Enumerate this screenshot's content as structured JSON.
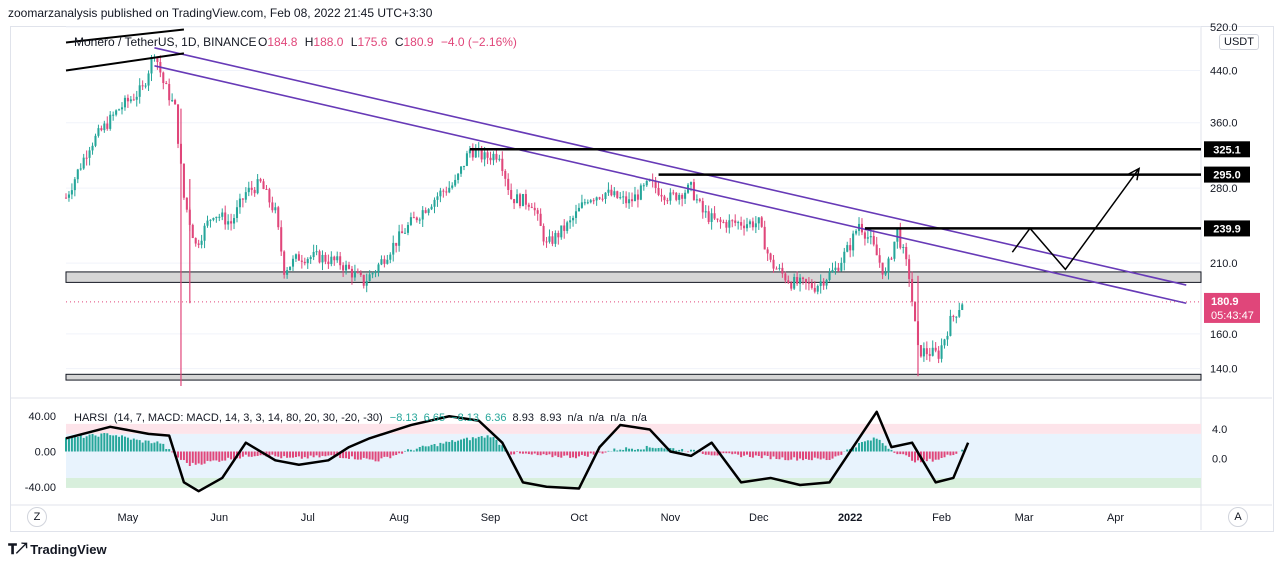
{
  "header": {
    "publisher": "zoomarzanalysis published on TradingView.com, Feb 08, 2022 21:45 UTC+3:30"
  },
  "footer": {
    "brand": "TradingView"
  },
  "currency_badge": "USDT",
  "legend": {
    "symbol": "Monero / TetherUS, 1D, BINANCE",
    "ohlc": [
      {
        "label": "O",
        "value": "184.8"
      },
      {
        "label": "H",
        "value": "188.0"
      },
      {
        "label": "L",
        "value": "175.6"
      },
      {
        "label": "C",
        "value": "180.9"
      },
      {
        "label": "",
        "value": "−4.0 (−2.16%)"
      }
    ]
  },
  "indicator_legend": {
    "name": "HARSI",
    "params": "(14, 7, MACD: MACD, 14, 3, 3, 14, 80, 20, 30, -20, -30)",
    "values": [
      "−8.13",
      "6.65",
      "−8.13",
      "6.36",
      "8.93",
      "8.93",
      "n/a",
      "n/a",
      "n/a",
      "n/a"
    ]
  },
  "axis_buttons": {
    "left": "Z",
    "right": "A"
  },
  "colors": {
    "up": "#26a69a",
    "down": "#e0467a",
    "trendline": "#673ab7",
    "level": "#000000",
    "price_tag": "#e0467a"
  },
  "chart_data": [
    {
      "type": "candlestick",
      "title": "Monero / TetherUS, 1D, BINANCE",
      "y_scale": "log",
      "ylim": [
        128,
        520
      ],
      "y_ticks": [
        "520.0",
        "440.0",
        "360.0",
        "280.0",
        "210.0",
        "160.0",
        "140.0"
      ],
      "y_tick_values": [
        520,
        440,
        360,
        280,
        210,
        160,
        140
      ],
      "x_ticks": [
        "May",
        "Jun",
        "Jul",
        "Aug",
        "Sep",
        "Oct",
        "Nov",
        "Dec",
        "2022",
        "Feb",
        "Mar",
        "Apr"
      ],
      "x_tick_dates": [
        "2021-05-01",
        "2021-06-01",
        "2021-07-01",
        "2021-08-01",
        "2021-09-01",
        "2021-10-01",
        "2021-11-01",
        "2021-12-01",
        "2022-01-01",
        "2022-02-01",
        "2022-03-01",
        "2022-04-01"
      ],
      "xlim": [
        "2021-04-10",
        "2022-04-30"
      ],
      "close_path": [
        [
          "2021-04-10",
          270
        ],
        [
          "2021-04-18",
          330
        ],
        [
          "2021-04-28",
          380
        ],
        [
          "2021-05-06",
          410
        ],
        [
          "2021-05-10",
          475
        ],
        [
          "2021-05-13",
          420
        ],
        [
          "2021-05-17",
          380
        ],
        [
          "2021-05-20",
          270
        ],
        [
          "2021-05-24",
          225
        ],
        [
          "2021-05-30",
          255
        ],
        [
          "2021-06-05",
          245
        ],
        [
          "2021-06-10",
          275
        ],
        [
          "2021-06-15",
          285
        ],
        [
          "2021-06-20",
          255
        ],
        [
          "2021-06-23",
          205
        ],
        [
          "2021-06-28",
          215
        ],
        [
          "2021-07-05",
          215
        ],
        [
          "2021-07-12",
          210
        ],
        [
          "2021-07-20",
          195
        ],
        [
          "2021-07-24",
          205
        ],
        [
          "2021-07-30",
          225
        ],
        [
          "2021-08-05",
          245
        ],
        [
          "2021-08-10",
          260
        ],
        [
          "2021-08-15",
          275
        ],
        [
          "2021-08-20",
          285
        ],
        [
          "2021-08-25",
          325
        ],
        [
          "2021-08-30",
          315
        ],
        [
          "2021-09-04",
          320
        ],
        [
          "2021-09-08",
          270
        ],
        [
          "2021-09-15",
          265
        ],
        [
          "2021-09-20",
          225
        ],
        [
          "2021-09-28",
          245
        ],
        [
          "2021-10-04",
          270
        ],
        [
          "2021-10-10",
          275
        ],
        [
          "2021-10-18",
          265
        ],
        [
          "2021-10-25",
          285
        ],
        [
          "2021-11-01",
          270
        ],
        [
          "2021-11-08",
          280
        ],
        [
          "2021-11-12",
          255
        ],
        [
          "2021-11-17",
          245
        ],
        [
          "2021-11-25",
          245
        ],
        [
          "2021-12-01",
          245
        ],
        [
          "2021-12-05",
          210
        ],
        [
          "2021-12-12",
          195
        ],
        [
          "2021-12-20",
          192
        ],
        [
          "2021-12-27",
          205
        ],
        [
          "2022-01-01",
          225
        ],
        [
          "2022-01-04",
          245
        ],
        [
          "2022-01-08",
          228
        ],
        [
          "2022-01-13",
          200
        ],
        [
          "2022-01-17",
          238
        ],
        [
          "2022-01-21",
          200
        ],
        [
          "2022-01-24",
          150
        ],
        [
          "2022-01-31",
          148
        ],
        [
          "2022-02-04",
          168
        ],
        [
          "2022-02-08",
          181
        ]
      ],
      "wicks": [
        {
          "date": "2021-05-19",
          "high": 380,
          "low": 131
        },
        {
          "date": "2021-05-22",
          "high": 290,
          "low": 180
        },
        {
          "date": "2022-01-24",
          "high": 200,
          "low": 136
        }
      ],
      "last_price": {
        "value": 180.9,
        "label": "180.9",
        "countdown": "05:43:47"
      },
      "levels": [
        {
          "value": 325.1,
          "label": "325.1",
          "from": "2021-08-25"
        },
        {
          "value": 295.0,
          "label": "295.0",
          "from": "2021-10-28"
        },
        {
          "value": 239.9,
          "label": "239.9",
          "from": "2022-01-06"
        }
      ],
      "zones": [
        {
          "low": 195,
          "high": 203
        },
        {
          "low": 134,
          "high": 137
        }
      ],
      "trendlines": [
        {
          "color": "#673ab7",
          "points": [
            [
              "2021-05-10",
              480
            ],
            [
              "2022-04-25",
              193
            ]
          ]
        },
        {
          "color": "#673ab7",
          "points": [
            [
              "2021-05-10",
              448
            ],
            [
              "2022-04-25",
              180
            ]
          ]
        },
        {
          "color": "#000000",
          "points": [
            [
              "2021-04-10",
              490
            ],
            [
              "2021-05-20",
              515
            ]
          ]
        },
        {
          "color": "#000000",
          "points": [
            [
              "2021-04-10",
              440
            ],
            [
              "2021-05-20",
              470
            ]
          ]
        }
      ],
      "projection": [
        [
          "2022-02-25",
          219
        ],
        [
          "2022-03-03",
          240
        ],
        [
          "2022-03-15",
          205
        ],
        [
          "2022-04-09",
          302
        ]
      ]
    },
    {
      "type": "area",
      "title": "HARSI",
      "ylim": [
        -55,
        55
      ],
      "y_ticks_left": [
        "40.00",
        "0.00",
        "-40.00"
      ],
      "y_tick_values_left": [
        40,
        0,
        -40
      ],
      "y_ticks_right": [
        "4.0",
        "0.0"
      ],
      "band_upper": 20,
      "band_lower": -30,
      "histogram": [
        [
          "2021-04-10",
          15
        ],
        [
          "2021-04-25",
          20
        ],
        [
          "2021-05-05",
          12
        ],
        [
          "2021-05-12",
          10
        ],
        [
          "2021-05-17",
          -5
        ],
        [
          "2021-05-22",
          -15
        ],
        [
          "2021-06-01",
          -10
        ],
        [
          "2021-06-15",
          -3
        ],
        [
          "2021-06-25",
          -8
        ],
        [
          "2021-07-10",
          -5
        ],
        [
          "2021-07-25",
          -10
        ],
        [
          "2021-08-05",
          2
        ],
        [
          "2021-08-20",
          12
        ],
        [
          "2021-09-01",
          18
        ],
        [
          "2021-09-08",
          -2
        ],
        [
          "2021-09-20",
          -5
        ],
        [
          "2021-10-01",
          -6
        ],
        [
          "2021-10-15",
          3
        ],
        [
          "2021-10-28",
          5
        ],
        [
          "2021-11-05",
          2
        ],
        [
          "2021-11-15",
          -3
        ],
        [
          "2021-11-28",
          -5
        ],
        [
          "2021-12-10",
          -8
        ],
        [
          "2021-12-25",
          -9
        ],
        [
          "2022-01-05",
          10
        ],
        [
          "2022-01-10",
          15
        ],
        [
          "2022-01-15",
          2
        ],
        [
          "2022-01-24",
          -12
        ],
        [
          "2022-02-01",
          -8
        ],
        [
          "2022-02-08",
          2
        ]
      ],
      "oscillator": [
        [
          "2021-04-10",
          15
        ],
        [
          "2021-04-25",
          28
        ],
        [
          "2021-05-08",
          20
        ],
        [
          "2021-05-15",
          18
        ],
        [
          "2021-05-20",
          -35
        ],
        [
          "2021-05-25",
          -45
        ],
        [
          "2021-06-02",
          -30
        ],
        [
          "2021-06-10",
          10
        ],
        [
          "2021-06-20",
          -10
        ],
        [
          "2021-06-28",
          -15
        ],
        [
          "2021-07-08",
          -10
        ],
        [
          "2021-07-15",
          5
        ],
        [
          "2021-07-22",
          15
        ],
        [
          "2021-08-05",
          30
        ],
        [
          "2021-08-18",
          40
        ],
        [
          "2021-08-28",
          35
        ],
        [
          "2021-09-05",
          10
        ],
        [
          "2021-09-12",
          -35
        ],
        [
          "2021-09-20",
          -40
        ],
        [
          "2021-10-01",
          -42
        ],
        [
          "2021-10-08",
          5
        ],
        [
          "2021-10-15",
          30
        ],
        [
          "2021-10-25",
          25
        ],
        [
          "2021-11-01",
          0
        ],
        [
          "2021-11-08",
          -5
        ],
        [
          "2021-11-15",
          10
        ],
        [
          "2021-11-25",
          -35
        ],
        [
          "2021-12-05",
          -30
        ],
        [
          "2021-12-15",
          -38
        ],
        [
          "2021-12-25",
          -35
        ],
        [
          "2022-01-05",
          20
        ],
        [
          "2022-01-10",
          45
        ],
        [
          "2022-01-15",
          5
        ],
        [
          "2022-01-22",
          10
        ],
        [
          "2022-01-30",
          -35
        ],
        [
          "2022-02-05",
          -30
        ],
        [
          "2022-02-10",
          10
        ]
      ]
    }
  ]
}
